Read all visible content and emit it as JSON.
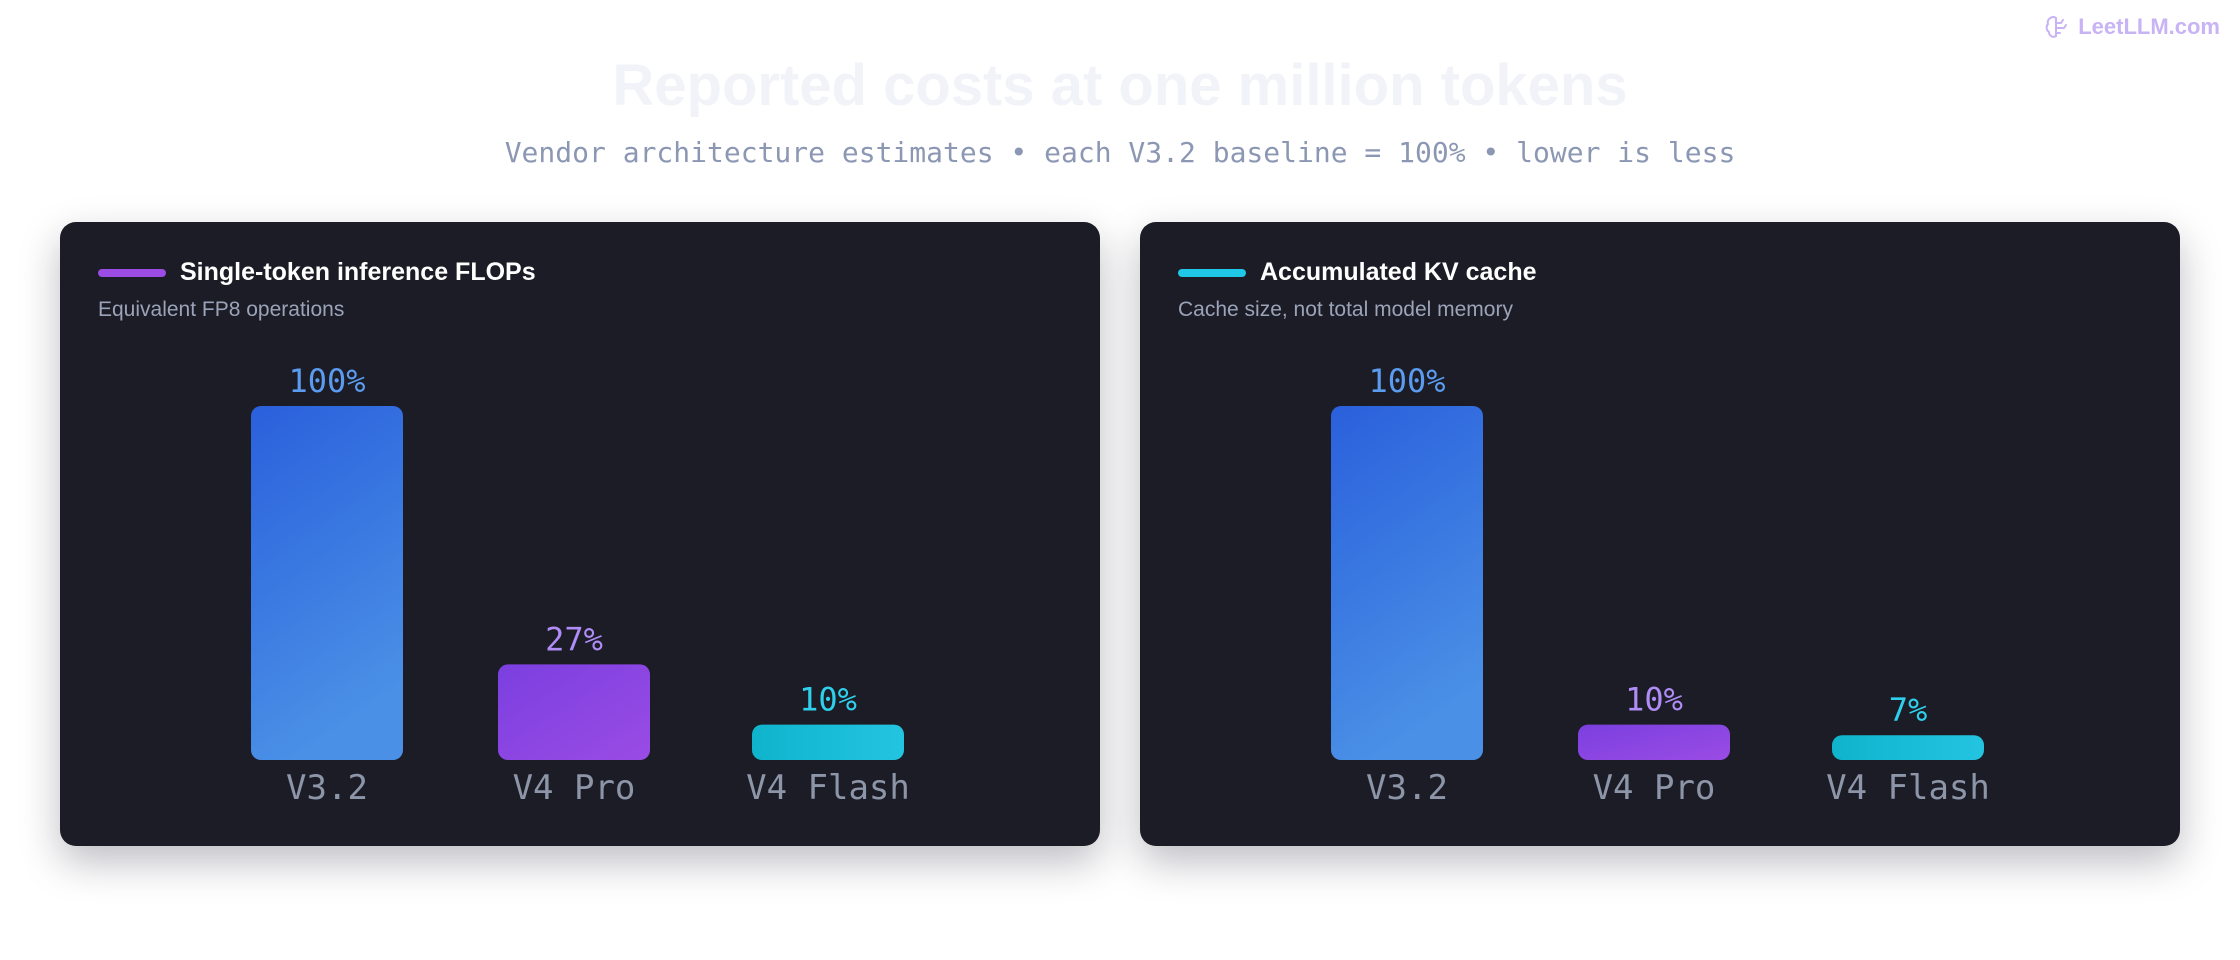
{
  "brand": {
    "text": "LeetLLM.com",
    "icon": "brain-icon"
  },
  "title": "Reported costs at one million tokens",
  "subtitle": "Vendor architecture estimates • each V3.2 baseline = 100% • lower is less",
  "colors": {
    "v32_top": "#2a60dc",
    "v32_bottom": "#4a90e6",
    "pro_top": "#7b3fe0",
    "pro_bottom": "#9a4ce4",
    "flash_left": "#0fb4cc",
    "flash_right": "#23c4e0",
    "v32_label": "#5b9cf0",
    "pro_label": "#b08cf6",
    "flash_label": "#2ed0ec",
    "panel_bg": "#1c1c26"
  },
  "chart_data": [
    {
      "type": "bar",
      "title": "Single-token inference FLOPs",
      "subtitle": "Equivalent FP8 operations",
      "legend_color": "#9a4ce4",
      "categories": [
        "V3.2",
        "V4 Pro",
        "V4 Flash"
      ],
      "values": [
        100,
        27,
        10
      ],
      "value_labels": [
        "100%",
        "27%",
        "10%"
      ],
      "ylim": [
        0,
        100
      ],
      "grid": false
    },
    {
      "type": "bar",
      "title": "Accumulated KV cache",
      "subtitle": "Cache size, not total model memory",
      "legend_color": "#1ec8e6",
      "categories": [
        "V3.2",
        "V4 Pro",
        "V4 Flash"
      ],
      "values": [
        100,
        10,
        7
      ],
      "value_labels": [
        "100%",
        "10%",
        "7%"
      ],
      "ylim": [
        0,
        100
      ],
      "grid": false
    }
  ]
}
